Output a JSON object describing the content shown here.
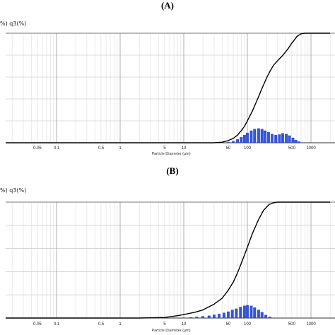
{
  "chart_data": [
    {
      "panel_label": "(A)",
      "type": "line+bar",
      "ylabel": "%) q3(%)",
      "xlabel": "Particle Diameter (μm)",
      "x_scale": "log",
      "xlim": [
        0.01,
        2000
      ],
      "ylim": [
        0,
        100
      ],
      "grid": true,
      "x_ticks": [
        {
          "v": 0.05,
          "label": "0.05"
        },
        {
          "v": 0.1,
          "label": "0.1"
        },
        {
          "v": 0.5,
          "label": "0.5"
        },
        {
          "v": 1,
          "label": "1"
        },
        {
          "v": 5,
          "label": "5"
        },
        {
          "v": 10,
          "label": "10"
        },
        {
          "v": 50,
          "label": "50"
        },
        {
          "v": 100,
          "label": "100"
        },
        {
          "v": 500,
          "label": "500"
        },
        {
          "v": 1000,
          "label": "1000"
        }
      ],
      "series": [
        {
          "kind": "line",
          "color": "#000000",
          "x": [
            0.01,
            30,
            40,
            50,
            60,
            70,
            80,
            90,
            100,
            120,
            140,
            160,
            180,
            200,
            230,
            260,
            300,
            350,
            400,
            450,
            500,
            550,
            600,
            700,
            800,
            2000
          ],
          "y": [
            0,
            0,
            0.5,
            2,
            4,
            7,
            11,
            15,
            20,
            29,
            38,
            46,
            53,
            59,
            66,
            71,
            75,
            79,
            83,
            87,
            91,
            94,
            97,
            99.5,
            100,
            100
          ]
        },
        {
          "kind": "histogram",
          "color": "#3355dd",
          "x": [
            50,
            60,
            70,
            80,
            90,
            100,
            115,
            130,
            150,
            170,
            190,
            215,
            245,
            280,
            320,
            360,
            410,
            460,
            520,
            580,
            650
          ],
          "y": [
            0.5,
            1.5,
            3,
            5,
            7,
            9,
            11,
            12.5,
            13,
            12.5,
            11,
            9.5,
            8,
            7,
            7.5,
            8.5,
            8,
            6.5,
            4.5,
            2.5,
            1
          ]
        }
      ]
    },
    {
      "panel_label": "(B)",
      "type": "line+bar",
      "ylabel": "%) q3(%)",
      "xlabel": "Particle Diameter (μm)",
      "x_scale": "log",
      "xlim": [
        0.01,
        2000
      ],
      "ylim": [
        0,
        100
      ],
      "grid": true,
      "x_ticks": [
        {
          "v": 0.05,
          "label": "0.05"
        },
        {
          "v": 0.1,
          "label": "0.1"
        },
        {
          "v": 0.5,
          "label": "0.5"
        },
        {
          "v": 1,
          "label": "1"
        },
        {
          "v": 5,
          "label": "5"
        },
        {
          "v": 10,
          "label": "10"
        },
        {
          "v": 50,
          "label": "50"
        },
        {
          "v": 100,
          "label": "100"
        },
        {
          "v": 500,
          "label": "500"
        },
        {
          "v": 1000,
          "label": "1000"
        }
      ],
      "series": [
        {
          "kind": "line",
          "color": "#000000",
          "x": [
            0.01,
            2,
            5,
            8,
            10,
            15,
            20,
            30,
            40,
            50,
            60,
            70,
            80,
            100,
            120,
            150,
            180,
            220,
            260,
            300,
            350,
            400,
            2000
          ],
          "y": [
            0,
            0,
            0.5,
            2,
            3,
            5,
            7,
            12,
            17,
            24,
            31,
            39,
            47,
            61,
            73,
            85,
            93,
            98,
            99.5,
            100,
            100,
            100,
            100
          ]
        },
        {
          "kind": "histogram",
          "color": "#3355dd",
          "x": [
            10,
            13,
            16,
            20,
            25,
            30,
            36,
            43,
            50,
            58,
            67,
            78,
            90,
            100,
            115,
            130,
            150,
            170,
            195,
            225
          ],
          "y": [
            0.3,
            0.6,
            1,
            1.5,
            2,
            2.8,
            3.5,
            4.5,
            5.5,
            7,
            8,
            9.5,
            10.5,
            11,
            10.5,
            9,
            7,
            5,
            2.5,
            1
          ]
        }
      ]
    }
  ]
}
